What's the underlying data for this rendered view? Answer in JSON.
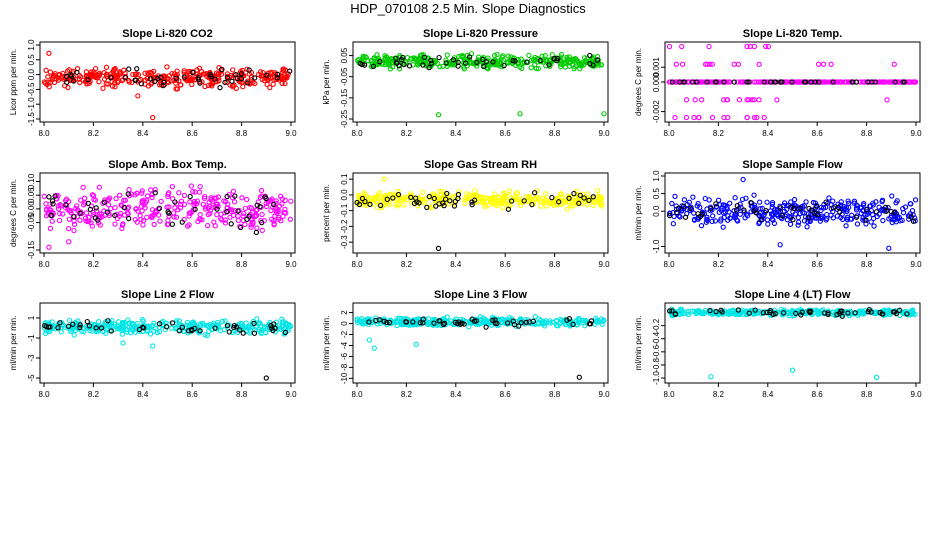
{
  "title": "HDP_070108  2.5 Min. Slope Diagnostics",
  "chart_data": [
    {
      "type": "scatter",
      "title": "Slope Li-820 CO2",
      "ylabel": "Licor ppm per min.",
      "color": "#ff0000",
      "xlim": [
        8.0,
        9.0
      ],
      "ylim": [
        -1.5,
        1.0
      ],
      "xticks": [
        "8.0",
        "8.2",
        "8.4",
        "8.6",
        "8.8",
        "9.0"
      ],
      "yticks": [
        "-1.5",
        "-1.0",
        "-0.5",
        "0.0",
        "0.5",
        "1.0"
      ],
      "dense": {
        "center": -0.1,
        "spread": 0.45
      },
      "outliers": [
        {
          "x": 8.44,
          "y": -1.45
        },
        {
          "x": 8.02,
          "y": 0.72
        },
        {
          "x": 8.38,
          "y": -0.72
        }
      ]
    },
    {
      "type": "scatter",
      "title": "Slope Li-820 Pressure",
      "ylabel": "kPa per min.",
      "color": "#00cc00",
      "xlim": [
        8.0,
        9.0
      ],
      "ylim": [
        -0.25,
        0.1
      ],
      "xticks": [
        "8.0",
        "8.2",
        "8.4",
        "8.6",
        "8.8",
        "9.0"
      ],
      "yticks": [
        "-0.25",
        "-0.15",
        "-0.05",
        "0.05"
      ],
      "dense": {
        "center": 0.02,
        "spread": 0.045
      },
      "outliers": [
        {
          "x": 8.33,
          "y": -0.23
        },
        {
          "x": 8.66,
          "y": -0.225
        },
        {
          "x": 9.0,
          "y": -0.225
        }
      ]
    },
    {
      "type": "scatter",
      "title": "Slope Li-820 Temp.",
      "ylabel": "degrees C per min.",
      "color": "#ff00ff",
      "xlim": [
        8.0,
        9.0
      ],
      "ylim": [
        -0.0025,
        0.0025
      ],
      "xticks": [
        "8.0",
        "8.2",
        "8.4",
        "8.6",
        "8.8",
        "9.0"
      ],
      "yticks": [
        "-0.002",
        "0.000",
        "0.001"
      ],
      "levels": [
        0.0024,
        0.0012,
        0.0,
        -0.0012,
        -0.0024
      ]
    },
    {
      "type": "scatter",
      "title": "Slope Amb. Box Temp.",
      "ylabel": "degrees C per min.",
      "color": "#ff00ff",
      "xlim": [
        8.0,
        9.0
      ],
      "ylim": [
        -0.15,
        0.12
      ],
      "xticks": [
        "8.0",
        "8.2",
        "8.4",
        "8.6",
        "8.8",
        "9.0"
      ],
      "yticks": [
        "-0.15",
        "-0.05",
        "0.00",
        "0.05",
        "0.10"
      ],
      "dense": {
        "center": 0.0,
        "spread": 0.11
      },
      "outliers": [
        {
          "x": 8.02,
          "y": -0.14
        },
        {
          "x": 8.1,
          "y": -0.12
        }
      ]
    },
    {
      "type": "scatter",
      "title": "Slope Gas Stream RH",
      "ylabel": "percent per min.",
      "color": "#ffff00",
      "xlim": [
        8.0,
        9.0
      ],
      "ylim": [
        -0.35,
        0.12
      ],
      "xticks": [
        "8.0",
        "8.2",
        "8.4",
        "8.6",
        "8.8",
        "9.0"
      ],
      "yticks": [
        "-0.3",
        "-0.2",
        "-0.1",
        "0.0",
        "0.1"
      ],
      "dense": {
        "center": -0.03,
        "spread": 0.07
      },
      "outliers": [
        {
          "x": 8.33,
          "y": -0.34
        },
        {
          "x": 8.11,
          "y": 0.1
        }
      ]
    },
    {
      "type": "scatter",
      "title": "Slope Sample Flow",
      "ylabel": "ml/min per min.",
      "color": "#0000ff",
      "xlim": [
        8.0,
        9.0
      ],
      "ylim": [
        -1.1,
        1.0
      ],
      "xticks": [
        "8.0",
        "8.2",
        "8.4",
        "8.6",
        "8.8",
        "9.0"
      ],
      "yticks": [
        "-1.0",
        "0.0",
        "0.5",
        "1.0"
      ],
      "dense": {
        "center": -0.02,
        "spread": 0.55
      },
      "outliers": [
        {
          "x": 8.89,
          "y": -1.05
        },
        {
          "x": 8.45,
          "y": -0.95
        },
        {
          "x": 8.3,
          "y": 0.9
        }
      ]
    },
    {
      "type": "scatter",
      "title": "Slope Line 2 Flow",
      "ylabel": "ml/min per min.",
      "color": "#00e5e5",
      "xlim": [
        8.0,
        9.0
      ],
      "ylim": [
        -5.2,
        2.2
      ],
      "xticks": [
        "8.0",
        "8.2",
        "8.4",
        "8.6",
        "8.8",
        "9.0"
      ],
      "yticks": [
        "-5",
        "-3",
        "-1",
        "1"
      ],
      "dense": {
        "center": 0.1,
        "spread": 1.0
      },
      "outliers": [
        {
          "x": 8.9,
          "y": -5.0
        },
        {
          "x": 8.44,
          "y": -1.8
        },
        {
          "x": 8.32,
          "y": -1.5
        }
      ]
    },
    {
      "type": "scatter",
      "title": "Slope Line 3 Flow",
      "ylabel": "ml/min per min.",
      "color": "#00e5e5",
      "xlim": [
        8.0,
        9.0
      ],
      "ylim": [
        -10.3,
        3.2
      ],
      "xticks": [
        "8.0",
        "8.2",
        "8.4",
        "8.6",
        "8.8",
        "9.0"
      ],
      "yticks": [
        "-10",
        "-8",
        "-6",
        "-4",
        "-2",
        "0",
        "2"
      ],
      "dense": {
        "center": 0.3,
        "spread": 1.1
      },
      "outliers": [
        {
          "x": 8.9,
          "y": -9.8
        },
        {
          "x": 8.24,
          "y": -3.8
        },
        {
          "x": 8.05,
          "y": -3.0
        },
        {
          "x": 8.07,
          "y": -4.5
        }
      ]
    },
    {
      "type": "scatter",
      "title": "Slope Line 4 (LT) Flow",
      "ylabel": "ml/min per min.",
      "color": "#00e5e5",
      "xlim": [
        8.0,
        9.0
      ],
      "ylim": [
        -1.03,
        0.1
      ],
      "xticks": [
        "8.0",
        "8.2",
        "8.4",
        "8.6",
        "8.8",
        "9.0"
      ],
      "yticks": [
        "-1.0",
        "-0.8",
        "-0.6",
        "-0.4",
        "-0.2"
      ],
      "dense": {
        "center": 0.0,
        "spread": 0.06
      },
      "outliers": [
        {
          "x": 8.17,
          "y": -0.98
        },
        {
          "x": 8.5,
          "y": -0.88
        },
        {
          "x": 8.84,
          "y": -0.99
        }
      ]
    }
  ]
}
